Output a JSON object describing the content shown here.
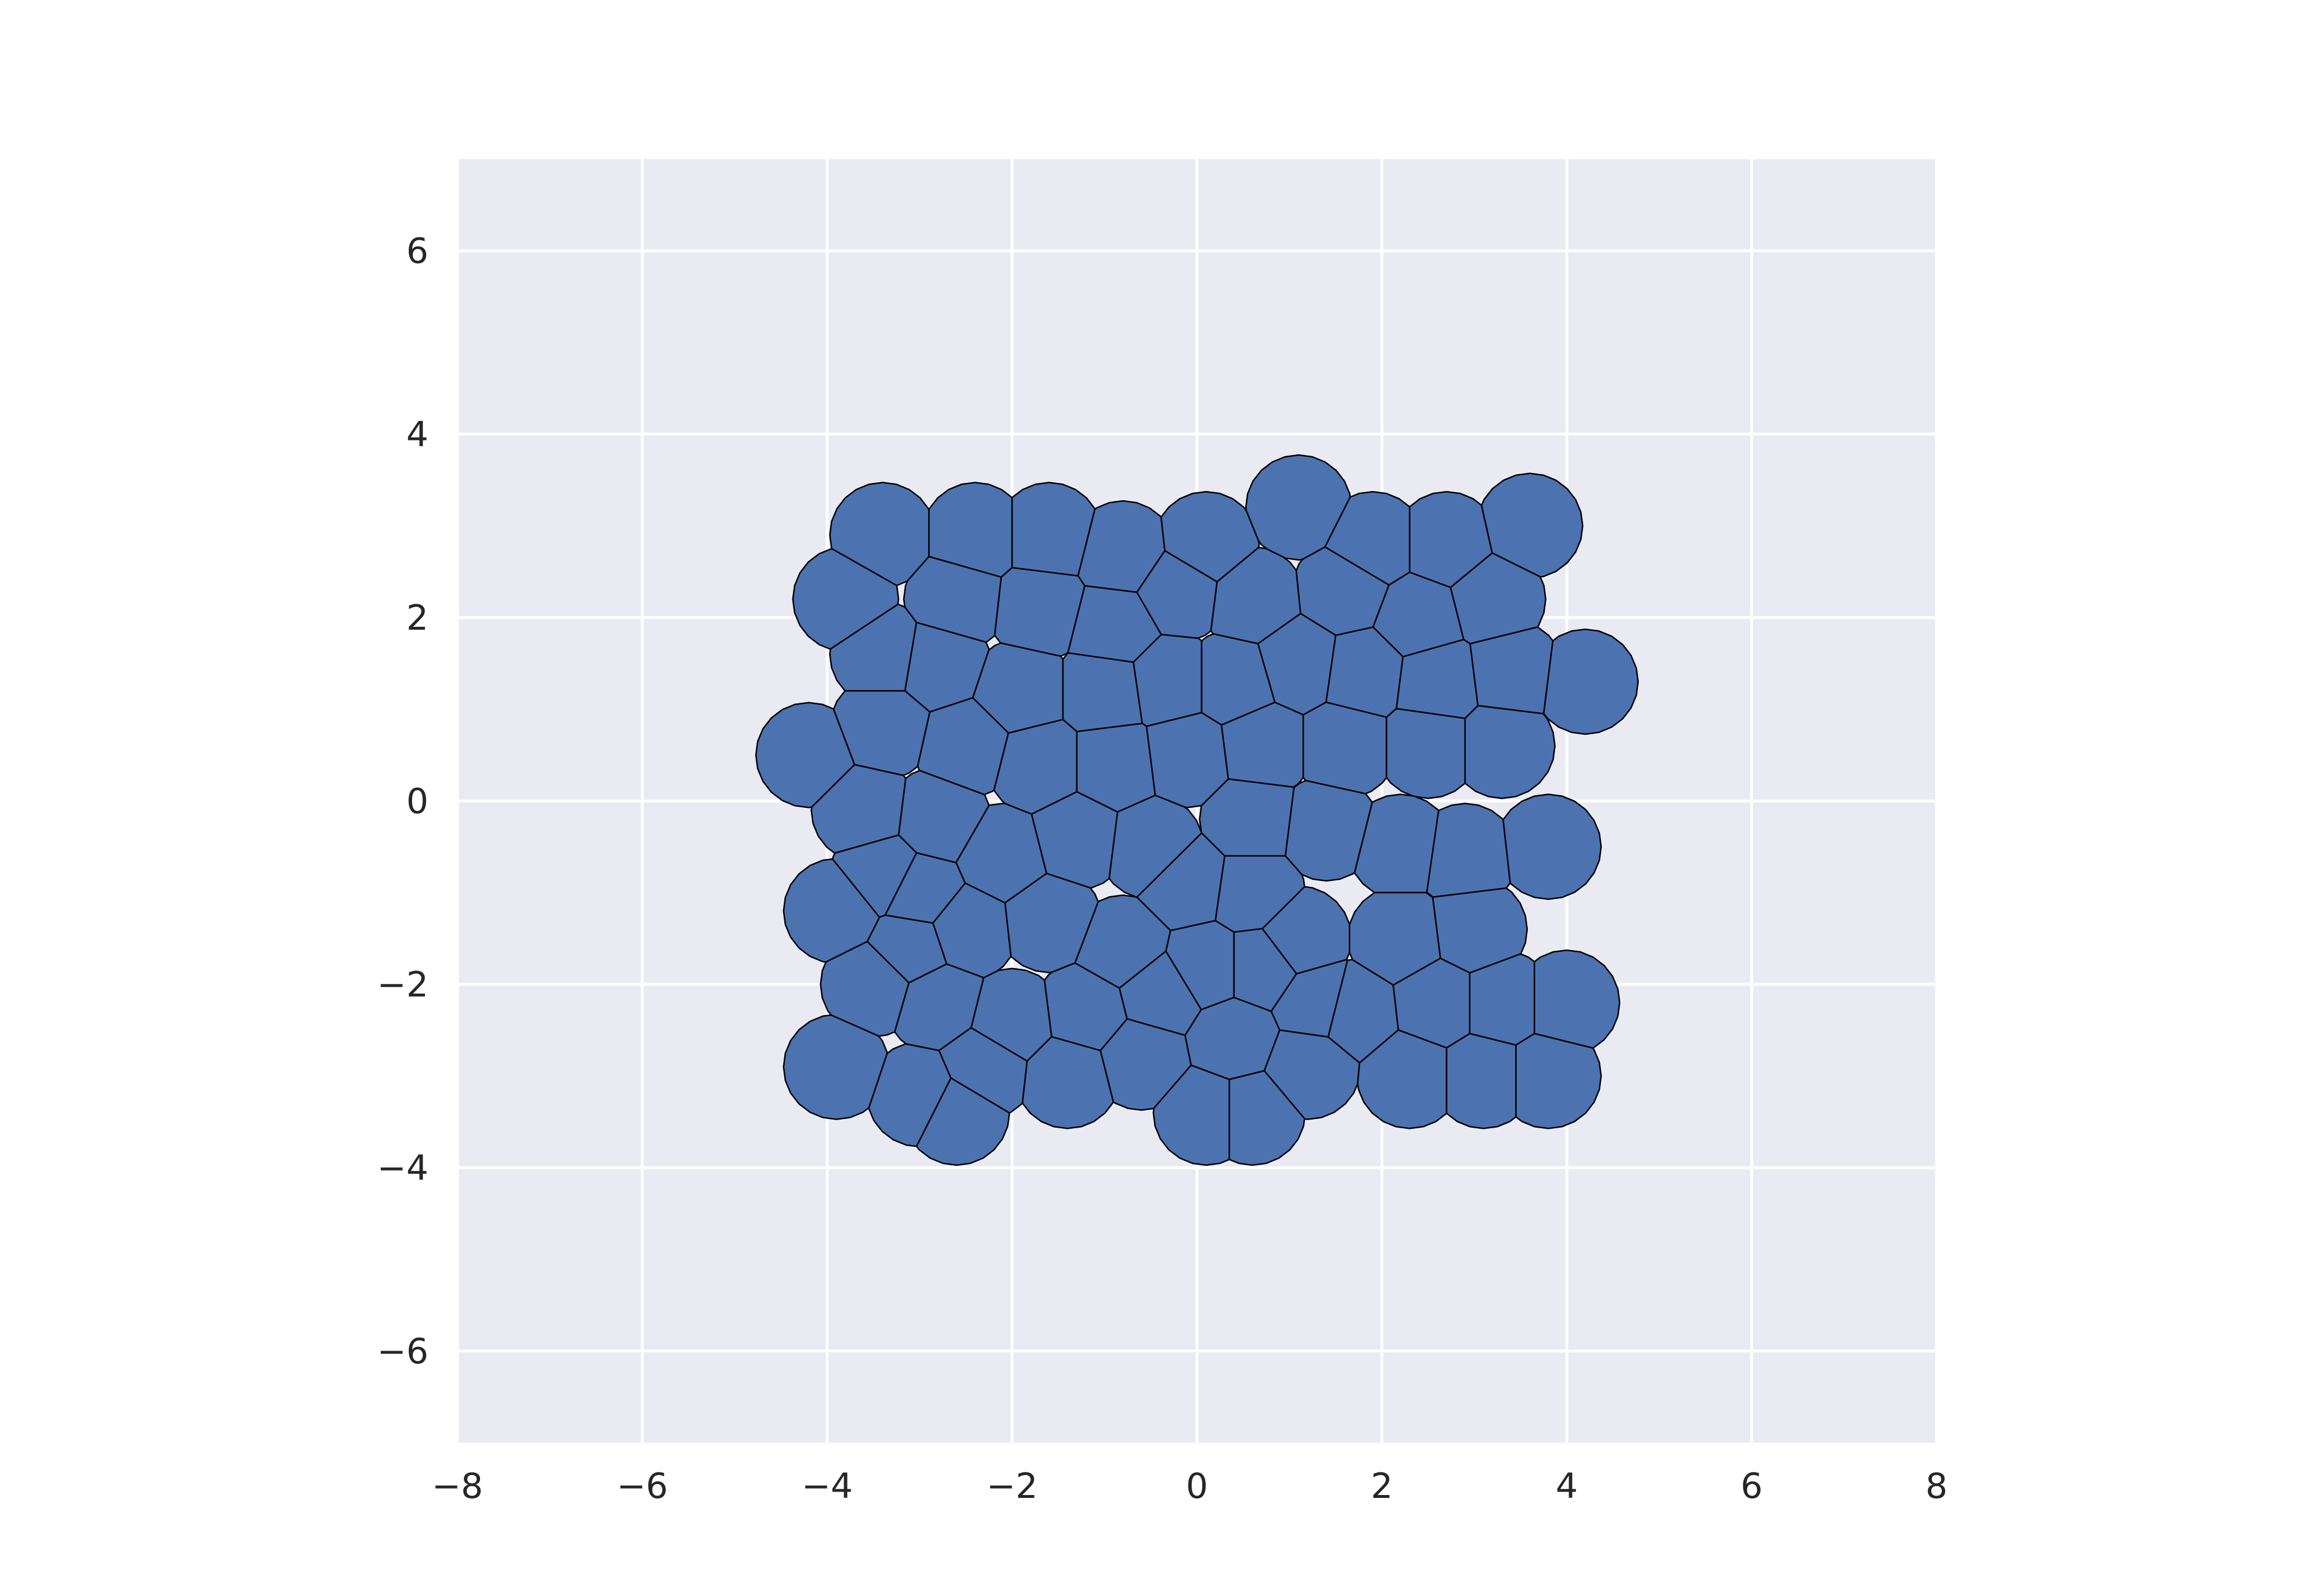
{
  "chart_data": {
    "type": "scatter",
    "title": "",
    "xlabel": "",
    "ylabel": "",
    "xlim": [
      -8,
      8
    ],
    "ylim": [
      -7,
      7
    ],
    "x_ticks": [
      -8,
      -6,
      -4,
      -2,
      0,
      2,
      4,
      6,
      8
    ],
    "y_ticks": [
      -6,
      -4,
      -2,
      0,
      2,
      4,
      6
    ],
    "x_tick_labels": [
      "−8",
      "−6",
      "−4",
      "−2",
      "0",
      "2",
      "4",
      "6",
      "8"
    ],
    "y_tick_labels": [
      "−6",
      "−4",
      "−2",
      "0",
      "2",
      "4",
      "6"
    ],
    "grid": true,
    "style": {
      "background": "#EAEAF2",
      "grid_color": "#FFFFFF",
      "cell_fill": "#4C72B0",
      "cell_edge": "#000000"
    },
    "points": [
      [
        -3.4,
        2.9
      ],
      [
        -2.4,
        2.9
      ],
      [
        -1.6,
        2.9
      ],
      [
        -0.8,
        2.7
      ],
      [
        0.1,
        2.8
      ],
      [
        1.1,
        3.2
      ],
      [
        1.9,
        2.8
      ],
      [
        2.7,
        2.8
      ],
      [
        3.6,
        3.0
      ],
      [
        -3.8,
        2.2
      ],
      [
        -2.6,
        2.2
      ],
      [
        -1.7,
        2.1
      ],
      [
        -0.9,
        1.9
      ],
      [
        -0.2,
        2.3
      ],
      [
        0.6,
        2.2
      ],
      [
        1.6,
        2.3
      ],
      [
        2.4,
        2.0
      ],
      [
        3.2,
        2.2
      ],
      [
        -3.4,
        1.6
      ],
      [
        -2.8,
        1.5
      ],
      [
        -1.9,
        1.2
      ],
      [
        -1.0,
        1.2
      ],
      [
        -0.3,
        1.3
      ],
      [
        0.4,
        1.3
      ],
      [
        1.1,
        1.5
      ],
      [
        1.8,
        1.4
      ],
      [
        2.6,
        1.3
      ],
      [
        3.4,
        1.4
      ],
      [
        4.2,
        1.3
      ],
      [
        -4.2,
        0.5
      ],
      [
        -3.4,
        0.8
      ],
      [
        -2.5,
        0.6
      ],
      [
        -1.7,
        0.4
      ],
      [
        -0.9,
        0.4
      ],
      [
        -0.1,
        0.5
      ],
      [
        0.7,
        0.6
      ],
      [
        1.6,
        0.6
      ],
      [
        2.5,
        0.6
      ],
      [
        3.3,
        0.6
      ],
      [
        -3.6,
        -0.1
      ],
      [
        -2.8,
        -0.2
      ],
      [
        -2.1,
        -0.6
      ],
      [
        -1.3,
        -0.4
      ],
      [
        -0.5,
        -0.5
      ],
      [
        0.6,
        -0.2
      ],
      [
        1.4,
        -0.3
      ],
      [
        2.2,
        -0.5
      ],
      [
        2.9,
        -0.6
      ],
      [
        3.8,
        -0.5
      ],
      [
        -3.4,
        -0.8
      ],
      [
        -3.0,
        -1.0
      ],
      [
        -0.1,
        -0.9
      ],
      [
        0.6,
        -1.0
      ],
      [
        -3.9,
        -1.2
      ],
      [
        -3.1,
        -1.6
      ],
      [
        -2.5,
        -1.4
      ],
      [
        -1.6,
        -1.3
      ],
      [
        -0.8,
        -1.6
      ],
      [
        1.1,
        -1.5
      ],
      [
        2.2,
        -1.5
      ],
      [
        3.0,
        -1.4
      ],
      [
        0.1,
        -1.8
      ],
      [
        0.7,
        -1.8
      ],
      [
        -3.5,
        -2.0
      ],
      [
        -2.8,
        -2.2
      ],
      [
        -2.0,
        -2.4
      ],
      [
        -1.2,
        -2.3
      ],
      [
        -0.4,
        -2.1
      ],
      [
        1.3,
        -2.2
      ],
      [
        1.7,
        -2.3
      ],
      [
        2.6,
        -2.2
      ],
      [
        3.3,
        -2.2
      ],
      [
        4.0,
        -2.2
      ],
      [
        -3.9,
        -2.9
      ],
      [
        -3.0,
        -3.2
      ],
      [
        -2.3,
        -2.9
      ],
      [
        -1.4,
        -3.0
      ],
      [
        -0.6,
        -2.8
      ],
      [
        0.4,
        -2.6
      ],
      [
        1.2,
        -2.9
      ],
      [
        2.3,
        -3.0
      ],
      [
        3.1,
        -3.0
      ],
      [
        3.8,
        -3.0
      ],
      [
        0.1,
        -3.4
      ],
      [
        0.6,
        -3.4
      ],
      [
        -2.6,
        -3.4
      ]
    ]
  }
}
